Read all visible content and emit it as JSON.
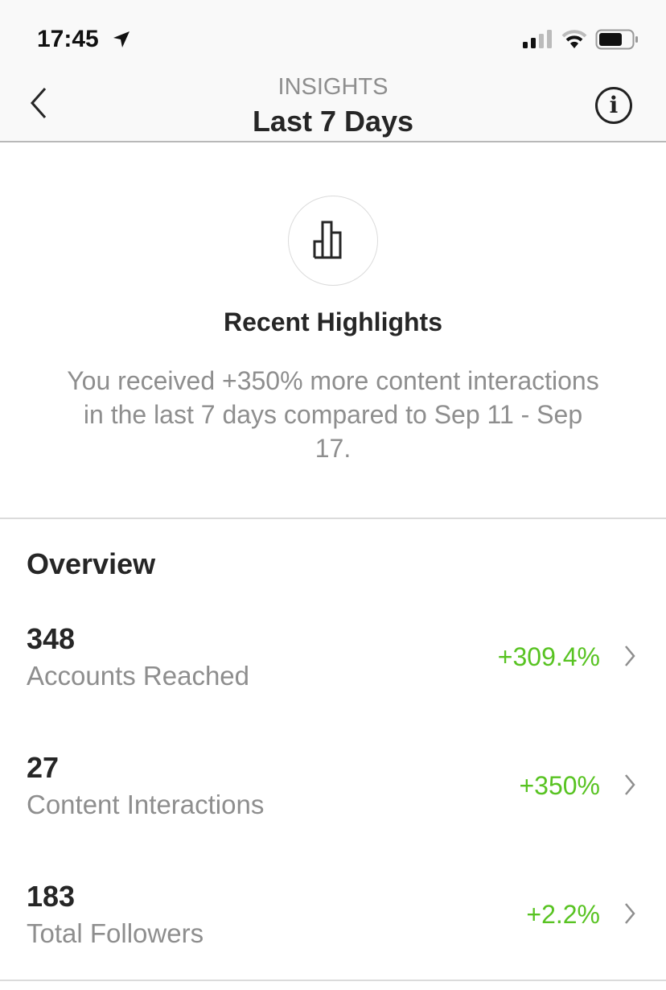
{
  "status_bar": {
    "time": "17:45"
  },
  "header": {
    "subtitle": "INSIGHTS",
    "title": "Last 7 Days"
  },
  "highlights": {
    "title": "Recent Highlights",
    "description": "You received +350% more content interactions in the last 7 days compared to Sep 11 - Sep 17."
  },
  "overview": {
    "title": "Overview",
    "items": [
      {
        "value": "348",
        "label": "Accounts Reached",
        "change": "+309.4%"
      },
      {
        "value": "27",
        "label": "Content Interactions",
        "change": "+350%"
      },
      {
        "value": "183",
        "label": "Total Followers",
        "change": "+2.2%"
      }
    ]
  },
  "colors": {
    "positive": "#58c322"
  }
}
